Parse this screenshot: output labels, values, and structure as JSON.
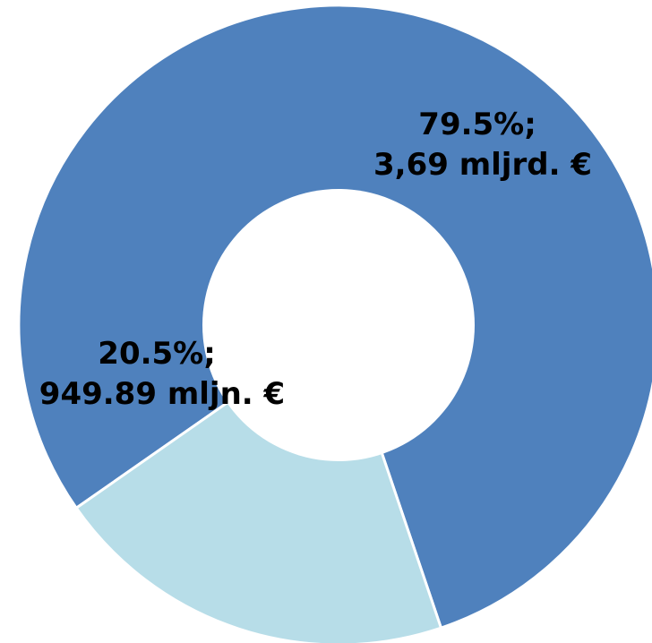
{
  "chart_data": {
    "type": "pie",
    "variant": "donut",
    "title": "",
    "legend": "none",
    "slices": [
      {
        "value_percent": 79.5,
        "label_line1": "79.5%;",
        "label_line2": "3,69 mljrd. €",
        "color": "#4f81bd"
      },
      {
        "value_percent": 20.5,
        "label_line1": "20.5%;",
        "label_line2": "949.89 mljn. €",
        "color": "#b7dde8"
      }
    ]
  }
}
